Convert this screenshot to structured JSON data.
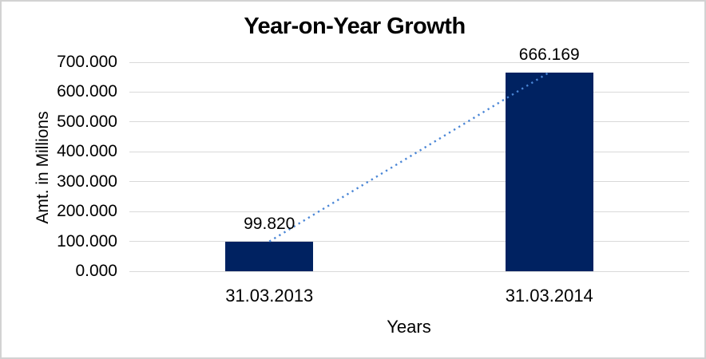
{
  "window": {
    "background": "#ffffff",
    "border_color": "#d2d2d2"
  },
  "chart_data": {
    "type": "bar",
    "title": "Year-on-Year Growth",
    "xlabel": "Years",
    "ylabel": "Amt. in Millions",
    "categories": [
      "31.03.2013",
      "31.03.2014"
    ],
    "values": [
      99.82,
      666.169
    ],
    "value_labels": [
      "99.820",
      "666.169"
    ],
    "y_ticks": [
      0,
      100,
      200,
      300,
      400,
      500,
      600,
      700
    ],
    "y_tick_labels": [
      "0.000",
      "100.000",
      "200.000",
      "300.000",
      "400.000",
      "500.000",
      "600.000",
      "700.000"
    ],
    "ylim": [
      0,
      700
    ],
    "grid": true,
    "legend": false,
    "trendline": {
      "type": "linear",
      "style": "dotted",
      "connects": [
        "bar-1-top-center",
        "bar-2-top-center"
      ],
      "color": "#4a86d6"
    },
    "colors": {
      "bar": "#002261",
      "gridline": "#d9d9d9",
      "text": "#000000"
    }
  }
}
